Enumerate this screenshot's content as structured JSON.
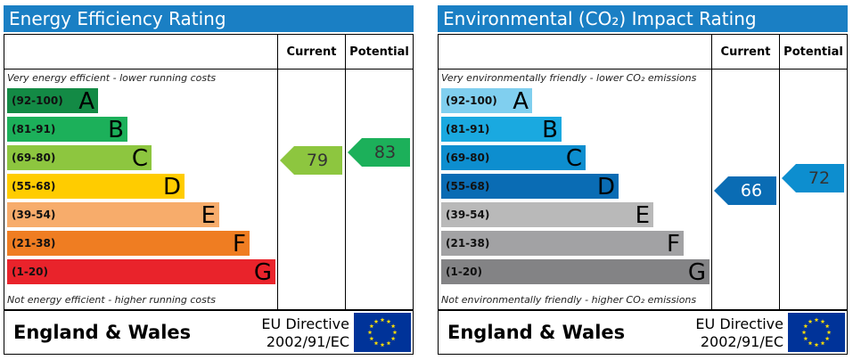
{
  "panels": [
    {
      "title": "Energy Efficiency Rating",
      "top_note": "Very energy efficient - lower running costs",
      "bottom_note": "Not energy efficient - higher running costs"
    },
    {
      "title": "Environmental (CO₂) Impact Rating",
      "top_note": "Very environmentally friendly - lower CO₂ emissions",
      "bottom_note": "Not environmentally friendly - higher CO₂ emissions"
    }
  ],
  "columns": {
    "current": "Current",
    "potential": "Potential"
  },
  "footer": {
    "region": "England & Wales",
    "directive_line1": "EU Directive",
    "directive_line2": "2002/91/EC"
  },
  "colors": {
    "title_bar": "#1a7fc4",
    "energy_bands": [
      "#138a45",
      "#1cb05a",
      "#8dc63f",
      "#ffcc00",
      "#f7ac6b",
      "#ef7d22",
      "#e9232b"
    ],
    "environmental_bands": [
      "#80cfef",
      "#1aa9e0",
      "#0d8ecf",
      "#0a6cb4",
      "#b9b9b9",
      "#a2a2a4",
      "#838385"
    ],
    "flag": "#003399",
    "stars": "#ffdd00"
  },
  "chart_data": [
    {
      "type": "bar",
      "title": "Energy Efficiency Rating",
      "categories": [
        "A",
        "B",
        "C",
        "D",
        "E",
        "F",
        "G"
      ],
      "ranges": [
        "(92-100)",
        "(81-91)",
        "(69-80)",
        "(55-68)",
        "(39-54)",
        "(21-38)",
        "(1-20)"
      ],
      "current": 79,
      "potential": 83
    },
    {
      "type": "bar",
      "title": "Environmental (CO₂) Impact Rating",
      "categories": [
        "A",
        "B",
        "C",
        "D",
        "E",
        "F",
        "G"
      ],
      "ranges": [
        "(92-100)",
        "(81-91)",
        "(69-80)",
        "(55-68)",
        "(39-54)",
        "(21-38)",
        "(1-20)"
      ],
      "current": 66,
      "potential": 72
    }
  ]
}
